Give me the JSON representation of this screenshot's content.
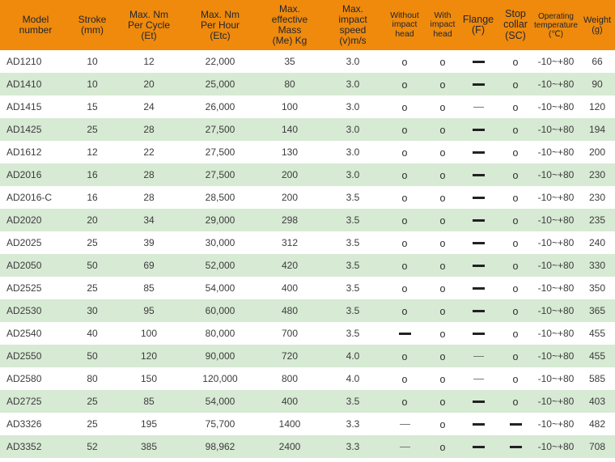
{
  "chart_data": {
    "type": "table",
    "title": "",
    "colors": {
      "header_bg": "#EF8A0C",
      "header_text": "#1D2433",
      "row_alt_bg": "#D7EAD4",
      "row_bg": "#FFFFFF",
      "data_text": "#3C3C3C"
    },
    "symbols": {
      "available": "o",
      "dash_thin": "—",
      "dash_bold": "—"
    },
    "columns": [
      {
        "key": "model",
        "label": "Model\nnumber",
        "type": "text",
        "align": "left"
      },
      {
        "key": "stroke",
        "label": "Stroke\n(mm)",
        "type": "text"
      },
      {
        "key": "et",
        "label": "Max. Nm\nPer Cycle\n(Et)",
        "type": "text"
      },
      {
        "key": "etc",
        "label": "Max. Nm\nPer Hour\n(Etc)",
        "type": "text"
      },
      {
        "key": "mass",
        "label": "Max.\neffective\nMass\n(Me) Kg",
        "type": "text"
      },
      {
        "key": "speed",
        "label": "Max.\nimpact\nspeed\n(v)m/s",
        "type": "text"
      },
      {
        "key": "without_head",
        "label": "Without\nimpact\nhead",
        "type": "mark"
      },
      {
        "key": "with_head",
        "label": "With\nimpact\nhead",
        "type": "mark"
      },
      {
        "key": "flange",
        "label": "Flange\n(F)",
        "type": "mark"
      },
      {
        "key": "stop_collar",
        "label": "Stop\ncollar\n(SC)",
        "type": "mark"
      },
      {
        "key": "temp",
        "label": "Operating\ntemperature\n(℃)",
        "type": "text"
      },
      {
        "key": "weight",
        "label": "Weight\n(g)",
        "type": "text"
      }
    ],
    "rows": [
      {
        "model": "AD1210",
        "stroke": "10",
        "et": "12",
        "etc": "22,000",
        "mass": "35",
        "speed": "3.0",
        "without_head": "available",
        "with_head": "available",
        "flange": "dash_bold",
        "stop_collar": "available",
        "temp": "-10~+80",
        "weight": "66"
      },
      {
        "model": "AD1410",
        "stroke": "10",
        "et": "20",
        "etc": "25,000",
        "mass": "80",
        "speed": "3.0",
        "without_head": "available",
        "with_head": "available",
        "flange": "dash_bold",
        "stop_collar": "available",
        "temp": "-10~+80",
        "weight": "90"
      },
      {
        "model": "AD1415",
        "stroke": "15",
        "et": "24",
        "etc": "26,000",
        "mass": "100",
        "speed": "3.0",
        "without_head": "available",
        "with_head": "available",
        "flange": "dash_thin",
        "stop_collar": "available",
        "temp": "-10~+80",
        "weight": "120"
      },
      {
        "model": "AD1425",
        "stroke": "25",
        "et": "28",
        "etc": "27,500",
        "mass": "140",
        "speed": "3.0",
        "without_head": "available",
        "with_head": "available",
        "flange": "dash_bold",
        "stop_collar": "available",
        "temp": "-10~+80",
        "weight": "194"
      },
      {
        "model": "AD1612",
        "stroke": "12",
        "et": "22",
        "etc": "27,500",
        "mass": "130",
        "speed": "3.0",
        "without_head": "available",
        "with_head": "available",
        "flange": "dash_bold",
        "stop_collar": "available",
        "temp": "-10~+80",
        "weight": "200"
      },
      {
        "model": "AD2016",
        "stroke": "16",
        "et": "28",
        "etc": "27,500",
        "mass": "200",
        "speed": "3.0",
        "without_head": "available",
        "with_head": "available",
        "flange": "dash_bold",
        "stop_collar": "available",
        "temp": "-10~+80",
        "weight": "230"
      },
      {
        "model": "AD2016-C",
        "stroke": "16",
        "et": "28",
        "etc": "28,500",
        "mass": "200",
        "speed": "3.5",
        "without_head": "available",
        "with_head": "available",
        "flange": "dash_bold",
        "stop_collar": "available",
        "temp": "-10~+80",
        "weight": "230"
      },
      {
        "model": "AD2020",
        "stroke": "20",
        "et": "34",
        "etc": "29,000",
        "mass": "298",
        "speed": "3.5",
        "without_head": "available",
        "with_head": "available",
        "flange": "dash_bold",
        "stop_collar": "available",
        "temp": "-10~+80",
        "weight": "235"
      },
      {
        "model": "AD2025",
        "stroke": "25",
        "et": "39",
        "etc": "30,000",
        "mass": "312",
        "speed": "3.5",
        "without_head": "available",
        "with_head": "available",
        "flange": "dash_bold",
        "stop_collar": "available",
        "temp": "-10~+80",
        "weight": "240"
      },
      {
        "model": "AD2050",
        "stroke": "50",
        "et": "69",
        "etc": "52,000",
        "mass": "420",
        "speed": "3.5",
        "without_head": "available",
        "with_head": "available",
        "flange": "dash_bold",
        "stop_collar": "available",
        "temp": "-10~+80",
        "weight": "330"
      },
      {
        "model": "AD2525",
        "stroke": "25",
        "et": "85",
        "etc": "54,000",
        "mass": "400",
        "speed": "3.5",
        "without_head": "available",
        "with_head": "available",
        "flange": "dash_bold",
        "stop_collar": "available",
        "temp": "-10~+80",
        "weight": "350"
      },
      {
        "model": "AD2530",
        "stroke": "30",
        "et": "95",
        "etc": "60,000",
        "mass": "480",
        "speed": "3.5",
        "without_head": "available",
        "with_head": "available",
        "flange": "dash_bold",
        "stop_collar": "available",
        "temp": "-10~+80",
        "weight": "365"
      },
      {
        "model": "AD2540",
        "stroke": "40",
        "et": "100",
        "etc": "80,000",
        "mass": "700",
        "speed": "3.5",
        "without_head": "dash_bold",
        "with_head": "available",
        "flange": "dash_bold",
        "stop_collar": "available",
        "temp": "-10~+80",
        "weight": "455"
      },
      {
        "model": "AD2550",
        "stroke": "50",
        "et": "120",
        "etc": "90,000",
        "mass": "720",
        "speed": "4.0",
        "without_head": "available",
        "with_head": "available",
        "flange": "dash_thin",
        "stop_collar": "available",
        "temp": "-10~+80",
        "weight": "455"
      },
      {
        "model": "AD2580",
        "stroke": "80",
        "et": "150",
        "etc": "120,000",
        "mass": "800",
        "speed": "4.0",
        "without_head": "available",
        "with_head": "available",
        "flange": "dash_thin",
        "stop_collar": "available",
        "temp": "-10~+80",
        "weight": "585"
      },
      {
        "model": "AD2725",
        "stroke": "25",
        "et": "85",
        "etc": "54,000",
        "mass": "400",
        "speed": "3.5",
        "without_head": "available",
        "with_head": "available",
        "flange": "dash_bold",
        "stop_collar": "available",
        "temp": "-10~+80",
        "weight": "403"
      },
      {
        "model": "AD3326",
        "stroke": "25",
        "et": "195",
        "etc": "75,700",
        "mass": "1400",
        "speed": "3.3",
        "without_head": "dash_thin",
        "with_head": "available",
        "flange": "dash_bold",
        "stop_collar": "dash_bold",
        "temp": "-10~+80",
        "weight": "482"
      },
      {
        "model": "AD3352",
        "stroke": "52",
        "et": "385",
        "etc": "98,962",
        "mass": "2400",
        "speed": "3.3",
        "without_head": "dash_thin",
        "with_head": "available",
        "flange": "dash_bold",
        "stop_collar": "dash_bold",
        "temp": "-10~+80",
        "weight": "708"
      }
    ]
  }
}
